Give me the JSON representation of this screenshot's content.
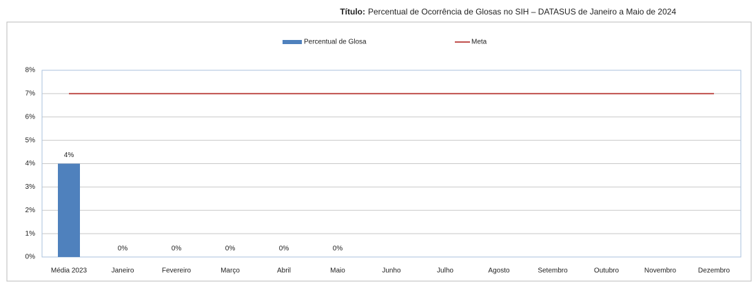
{
  "chart_data": {
    "type": "bar",
    "title_label": "Título:",
    "title": "Percentual de Ocorrência de Glosas no SIH – DATASUS  de Janeiro a Maio de 2024",
    "categories": [
      "Média 2023",
      "Janeiro",
      "Fevereiro",
      "Março",
      "Abril",
      "Maio",
      "Junho",
      "Julho",
      "Agosto",
      "Setembro",
      "Outubro",
      "Novembro",
      "Dezembro"
    ],
    "series": [
      {
        "name": "Percentual de Glosa",
        "type": "bar",
        "color": "#4f81bd",
        "values": [
          4,
          0,
          0,
          0,
          0,
          0,
          null,
          null,
          null,
          null,
          null,
          null,
          null
        ],
        "value_labels": [
          "4%",
          "0%",
          "0%",
          "0%",
          "0%",
          "0%",
          null,
          null,
          null,
          null,
          null,
          null,
          null
        ]
      },
      {
        "name": "Meta",
        "type": "line",
        "color": "#c0504d",
        "values": [
          7,
          7,
          7,
          7,
          7,
          7,
          7,
          7,
          7,
          7,
          7,
          7,
          7
        ]
      }
    ],
    "ylim": [
      0,
      8
    ],
    "yticks": [
      {
        "value": 0,
        "label": "0%"
      },
      {
        "value": 1,
        "label": "1%"
      },
      {
        "value": 2,
        "label": "2%"
      },
      {
        "value": 3,
        "label": "3%"
      },
      {
        "value": 4,
        "label": "4%"
      },
      {
        "value": 5,
        "label": "5%"
      },
      {
        "value": 6,
        "label": "6%"
      },
      {
        "value": 7,
        "label": "7%"
      },
      {
        "value": 8,
        "label": "8%"
      }
    ],
    "grid": true,
    "legend": "top"
  }
}
